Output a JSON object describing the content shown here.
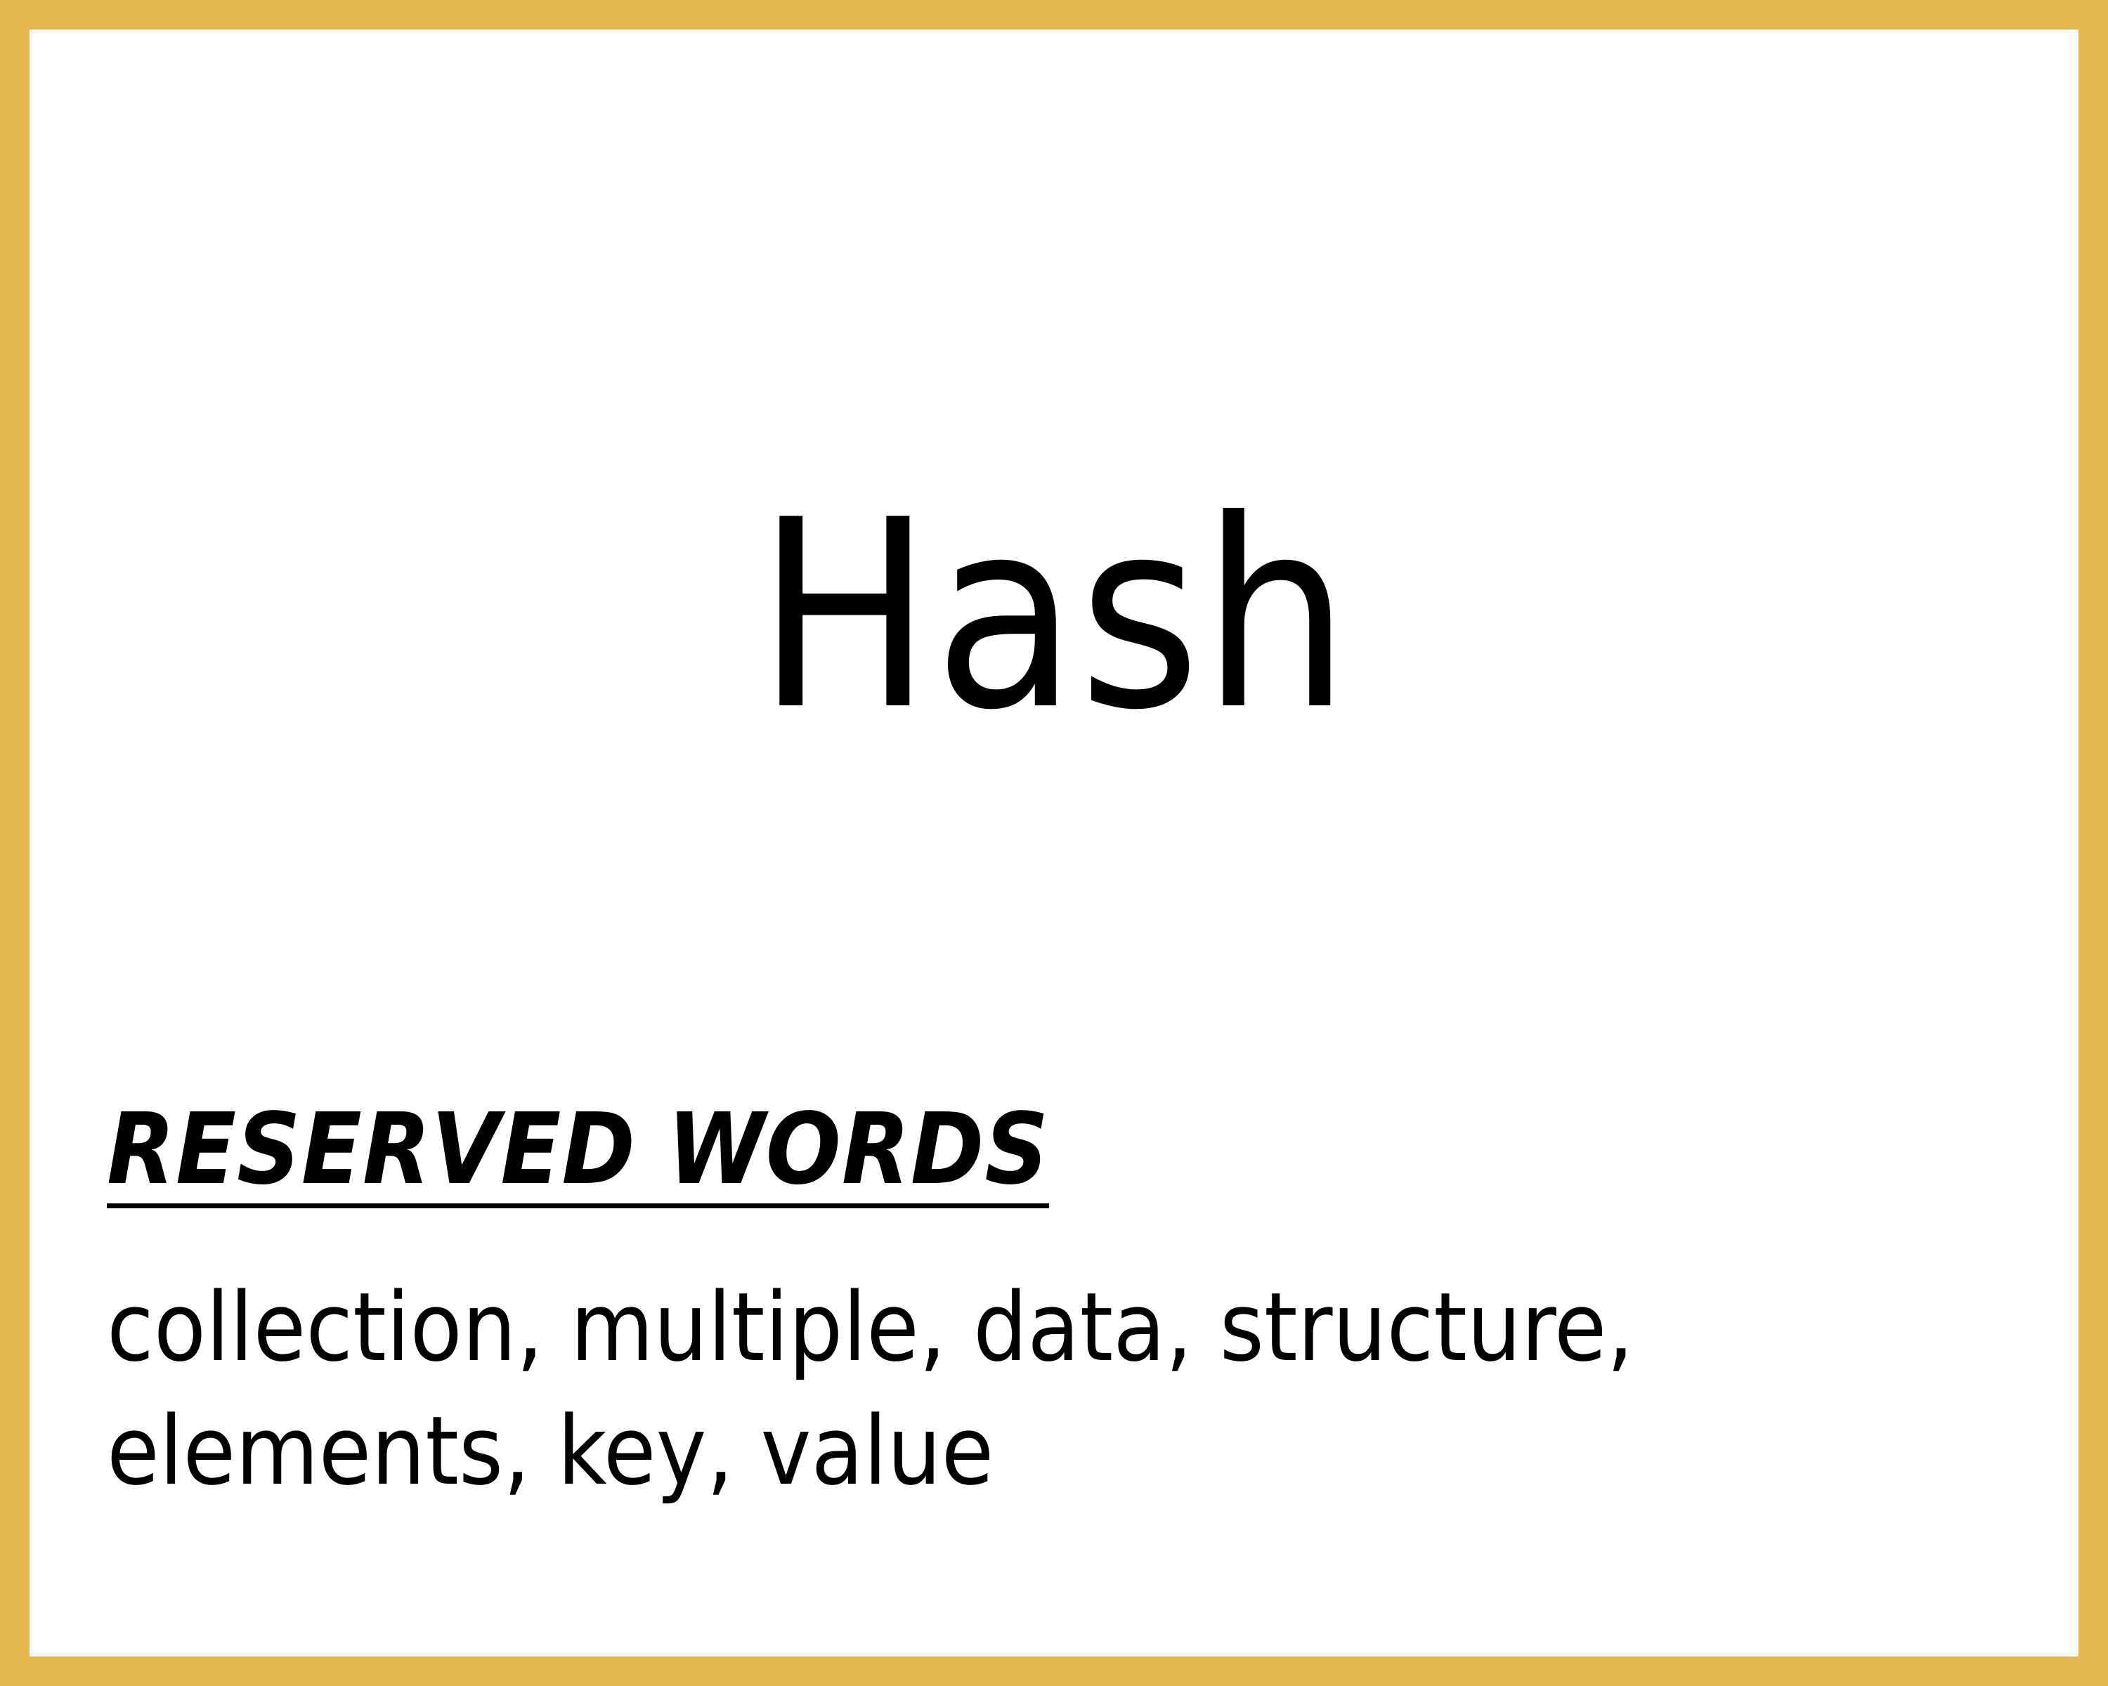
{
  "card": {
    "border_color": "#E4B84F",
    "term": "Hash",
    "reserved_heading": "RESERVED WORDS",
    "reserved_words": "collection, multiple, data, structure, elements, key, value"
  }
}
